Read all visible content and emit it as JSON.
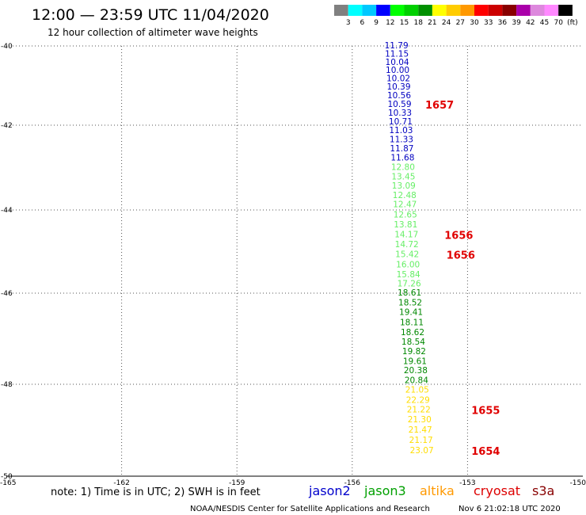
{
  "header": {
    "title": "12:00 — 23:59 UTC 11/04/2020",
    "subtitle": "12 hour collection of altimeter wave heights"
  },
  "colorbar": {
    "colors": [
      "#808080",
      "#00ffff",
      "#00c8ff",
      "#0000ff",
      "#00ff00",
      "#00d000",
      "#009000",
      "#ffff00",
      "#ffcc00",
      "#ff9900",
      "#ff0000",
      "#cc0000",
      "#880000",
      "#aa00aa",
      "#dd88dd",
      "#ff88ff",
      "#000000"
    ],
    "labels": [
      "3",
      "6",
      "9",
      "12",
      "15",
      "18",
      "21",
      "24",
      "27",
      "30",
      "33",
      "36",
      "39",
      "42",
      "45",
      "70",
      "(ft)"
    ]
  },
  "chart_data": {
    "type": "scatter",
    "title": "12 hour collection of altimeter wave heights",
    "xlim": [
      -165,
      -150
    ],
    "ylim": [
      -50,
      -40
    ],
    "x_ticks": [
      -165,
      -162,
      -159,
      -156,
      -153,
      -150
    ],
    "x_tick_labels": [
      "-165",
      "-162",
      "-159",
      "-156",
      "-153",
      "-150"
    ],
    "y_ticks": [
      -40,
      -42,
      -44,
      -46,
      -48,
      -50
    ],
    "y_tick_labels": [
      "-40",
      "-42",
      "-44",
      "-46",
      "-48",
      "-50"
    ],
    "grid": true,
    "series": [
      {
        "name": "jason2",
        "color": "#0000c0",
        "points": [
          {
            "x": -154.85,
            "y": -40.0,
            "value": "11.79"
          },
          {
            "x": -154.84,
            "y": -40.21,
            "value": "11.15"
          },
          {
            "x": -154.83,
            "y": -40.42,
            "value": "10.04"
          },
          {
            "x": -154.82,
            "y": -40.62,
            "value": "10.00"
          },
          {
            "x": -154.8,
            "y": -40.83,
            "value": "10.02"
          },
          {
            "x": -154.79,
            "y": -41.04,
            "value": "10.39"
          },
          {
            "x": -154.78,
            "y": -41.26,
            "value": "10.56"
          },
          {
            "x": -154.77,
            "y": -41.48,
            "value": "10.59"
          },
          {
            "x": -154.76,
            "y": -41.7,
            "value": "10.33"
          },
          {
            "x": -154.74,
            "y": -41.92,
            "value": "10.71"
          },
          {
            "x": -154.73,
            "y": -42.13,
            "value": "11.03"
          },
          {
            "x": -154.72,
            "y": -42.35,
            "value": "11.33"
          },
          {
            "x": -154.71,
            "y": -42.56,
            "value": "11.87"
          },
          {
            "x": -154.69,
            "y": -42.78,
            "value": "11.68"
          }
        ]
      },
      {
        "name": "",
        "color": "#66ee66",
        "points": [
          {
            "x": -154.68,
            "y": -43.0,
            "value": "12.80"
          },
          {
            "x": -154.67,
            "y": -43.22,
            "value": "13.45"
          },
          {
            "x": -154.66,
            "y": -43.44,
            "value": "13.09"
          },
          {
            "x": -154.64,
            "y": -43.66,
            "value": "12.48"
          },
          {
            "x": -154.63,
            "y": -43.88,
            "value": "12.47"
          },
          {
            "x": -154.62,
            "y": -44.12,
            "value": "12.65"
          },
          {
            "x": -154.61,
            "y": -44.36,
            "value": "13.81"
          },
          {
            "x": -154.59,
            "y": -44.6,
            "value": "14.17"
          },
          {
            "x": -154.58,
            "y": -44.84,
            "value": "14.72"
          },
          {
            "x": -154.57,
            "y": -45.08,
            "value": "15.42"
          },
          {
            "x": -154.55,
            "y": -45.32,
            "value": "16.00"
          },
          {
            "x": -154.54,
            "y": -45.56,
            "value": "15.84"
          },
          {
            "x": -154.52,
            "y": -45.78,
            "value": "17.26"
          }
        ]
      },
      {
        "name": "",
        "color": "#008800",
        "points": [
          {
            "x": -154.51,
            "y": -46.0,
            "value": "18.61"
          },
          {
            "x": -154.49,
            "y": -46.22,
            "value": "18.52"
          },
          {
            "x": -154.47,
            "y": -46.43,
            "value": "19.41"
          },
          {
            "x": -154.45,
            "y": -46.65,
            "value": "18.11"
          },
          {
            "x": -154.43,
            "y": -46.87,
            "value": "18.62"
          },
          {
            "x": -154.41,
            "y": -47.08,
            "value": "18.54"
          },
          {
            "x": -154.39,
            "y": -47.29,
            "value": "19.82"
          },
          {
            "x": -154.37,
            "y": -47.5,
            "value": "19.61"
          },
          {
            "x": -154.35,
            "y": -47.7,
            "value": "20.38"
          },
          {
            "x": -154.33,
            "y": -47.92,
            "value": "20.84"
          }
        ]
      },
      {
        "name": "",
        "color": "#ffdd00",
        "points": [
          {
            "x": -154.31,
            "y": -48.13,
            "value": "21.05"
          },
          {
            "x": -154.29,
            "y": -48.35,
            "value": "22.29"
          },
          {
            "x": -154.27,
            "y": -48.56,
            "value": "21.22"
          },
          {
            "x": -154.25,
            "y": -48.78,
            "value": "21.30"
          },
          {
            "x": -154.23,
            "y": -49.0,
            "value": "21.47"
          },
          {
            "x": -154.21,
            "y": -49.22,
            "value": "21.17"
          },
          {
            "x": -154.19,
            "y": -49.45,
            "value": "23.07"
          }
        ]
      }
    ],
    "time_labels": [
      {
        "x": -154.1,
        "y": -41.48,
        "text": "1657"
      },
      {
        "x": -153.6,
        "y": -44.6,
        "text": "1656"
      },
      {
        "x": -153.55,
        "y": -45.08,
        "text": "1656"
      },
      {
        "x": -152.9,
        "y": -48.56,
        "text": "1655"
      },
      {
        "x": -152.9,
        "y": -49.45,
        "text": "1654"
      }
    ]
  },
  "legend": {
    "note": "note:  1) Time is in UTC;  2) SWH is in feet",
    "satellites": [
      {
        "name": "jason2",
        "color": "#0000cc"
      },
      {
        "name": "jason3",
        "color": "#00a000"
      },
      {
        "name": "altika",
        "color": "#ff9900"
      },
      {
        "name": "cryosat",
        "color": "#dd0000"
      },
      {
        "name": "s3a",
        "color": "#880000"
      }
    ]
  },
  "footer": {
    "credit": "NOAA/NESDIS Center for Satellite Applications and Research",
    "timestamp": "Nov  6 21:02:18 UTC 2020"
  }
}
